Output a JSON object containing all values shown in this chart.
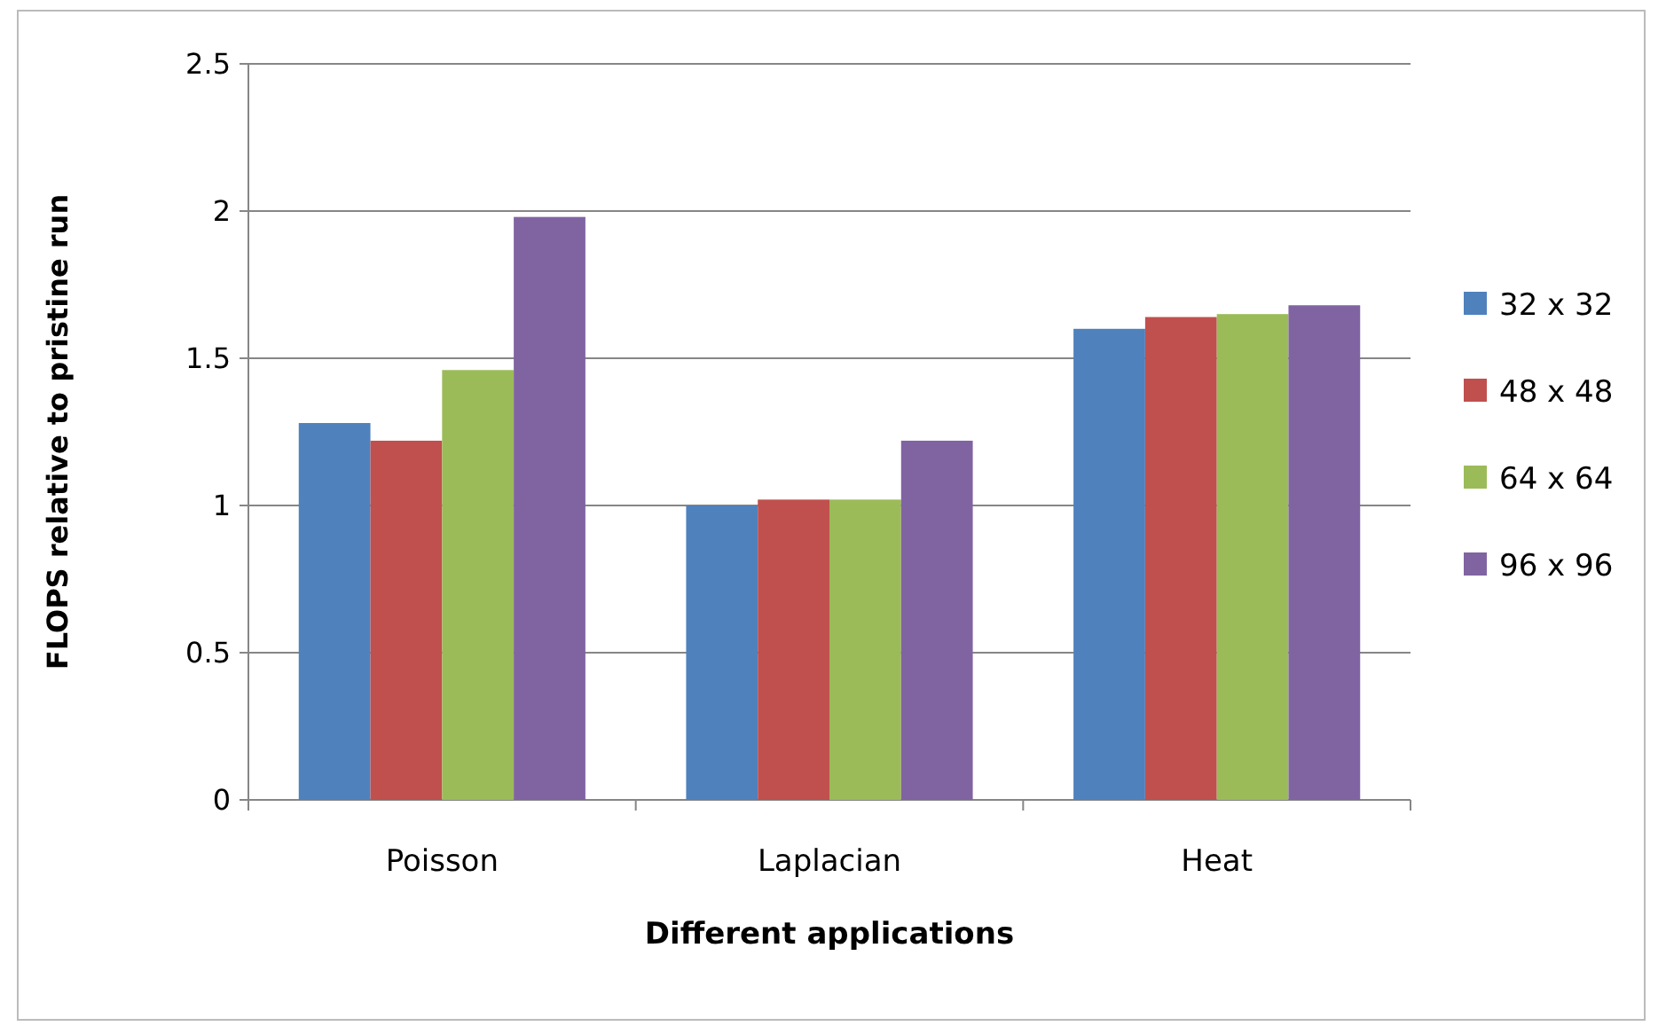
{
  "chart_data": {
    "type": "bar",
    "xlabel": "Different applications",
    "ylabel": "FLOPS relative to pristine run",
    "categories": [
      "Poisson",
      "Laplacian",
      "Heat"
    ],
    "series": [
      {
        "name": "32 x 32",
        "color": "#4f81bd",
        "values": [
          1.28,
          1.0,
          1.6
        ]
      },
      {
        "name": "48 x 48",
        "color": "#c0504d",
        "values": [
          1.22,
          1.02,
          1.64
        ]
      },
      {
        "name": "64 x 64",
        "color": "#9bbb59",
        "values": [
          1.46,
          1.02,
          1.65
        ]
      },
      {
        "name": "96 x 96",
        "color": "#8064a2",
        "values": [
          1.98,
          1.22,
          1.68
        ]
      }
    ],
    "ylim": [
      0,
      2.5
    ],
    "yticks": [
      0,
      0.5,
      1,
      1.5,
      2,
      2.5
    ],
    "grid": "y",
    "legend": "right"
  }
}
